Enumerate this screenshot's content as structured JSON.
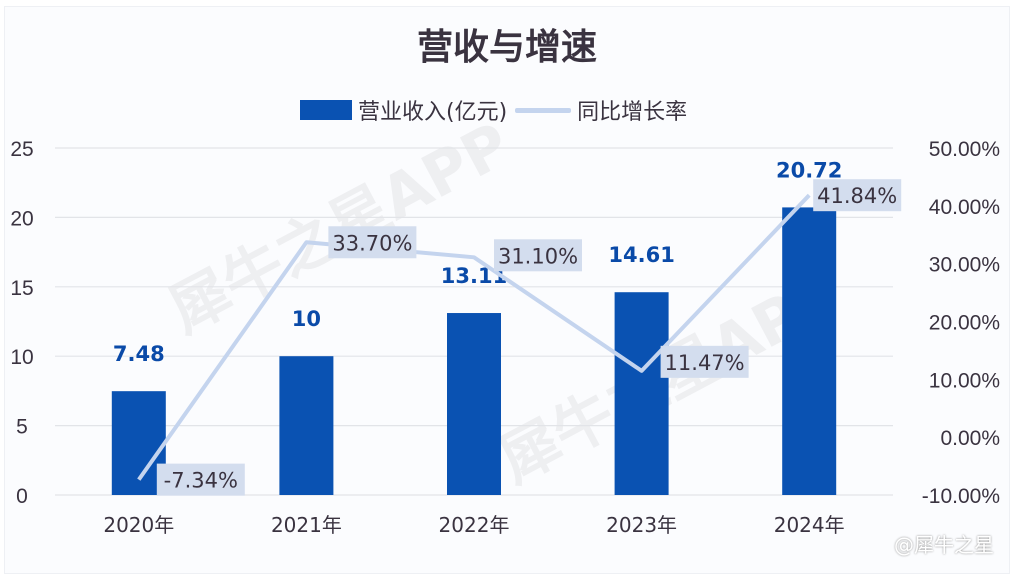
{
  "watermark": "犀牛之星APP",
  "source_mark": "@犀牛之星",
  "chart_data": {
    "type": "bar+line",
    "title": "营收与增速",
    "categories": [
      "2020年",
      "2021年",
      "2022年",
      "2023年",
      "2024年"
    ],
    "series": [
      {
        "name": "营业收入(亿元)",
        "type": "bar",
        "axis": "left",
        "color": "#0a52b2",
        "values": [
          7.48,
          10,
          13.11,
          14.61,
          20.72
        ],
        "labels": [
          "7.48",
          "10",
          "13.11",
          "14.61",
          "20.72"
        ]
      },
      {
        "name": "同比增长率",
        "type": "line",
        "axis": "right",
        "color": "#c4d4ee",
        "values": [
          -7.34,
          33.7,
          31.1,
          11.47,
          41.84
        ],
        "labels": [
          "-7.34%",
          "33.70%",
          "31.10%",
          "11.47%",
          "41.84%"
        ]
      }
    ],
    "left_axis": {
      "ylim": [
        0,
        25
      ],
      "ticks": [
        "0",
        "5",
        "10",
        "15",
        "20",
        "25"
      ]
    },
    "right_axis": {
      "ylim": [
        -10,
        50
      ],
      "ticks": [
        "-10.00%",
        "0.00%",
        "10.00%",
        "20.00%",
        "30.00%",
        "40.00%",
        "50.00%"
      ]
    },
    "grid": true,
    "legend": "top-center"
  }
}
